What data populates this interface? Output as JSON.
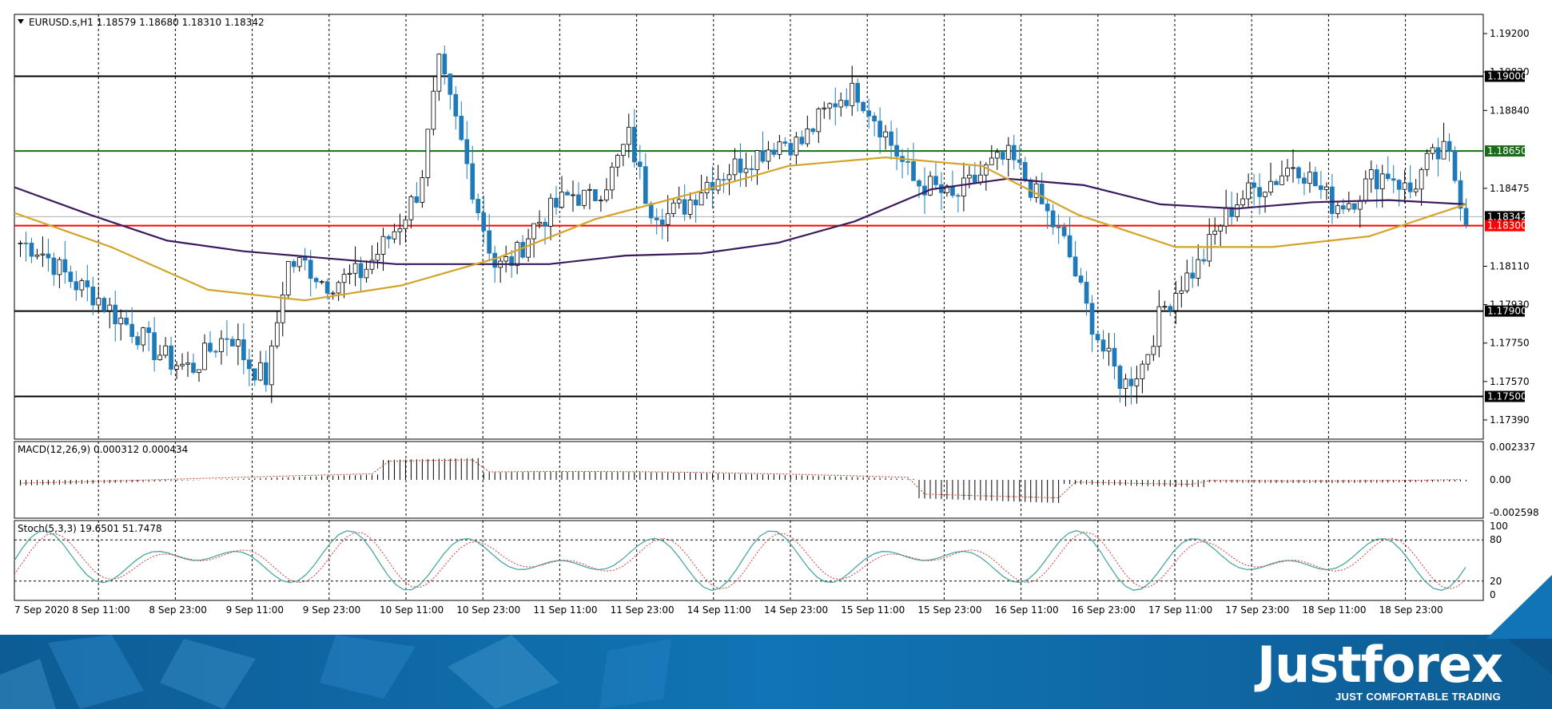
{
  "header": {
    "symbol_line": "EURUSD.s,H1  1.18579 1.18680 1.18310 1.18342",
    "menu_arrow_icon": "triangle-down-icon"
  },
  "macd": {
    "label": "MACD(12,26,9) 0.000312 0.000434",
    "axis_ticks": [
      "0.002337",
      "0.00",
      "-0.002598"
    ]
  },
  "stoch": {
    "label": "Stoch(5,3,3) 19.6501 51.7478",
    "axis_ticks": [
      "100",
      "80",
      "20",
      "0"
    ]
  },
  "price_axis": {
    "ticks": [
      "1.19200",
      "1.19020",
      "1.18840",
      "1.18475",
      "1.18110",
      "1.17930",
      "1.17750",
      "1.17570",
      "1.17390"
    ]
  },
  "levels": [
    {
      "label": "1.19000",
      "value": 1.19,
      "color": "#000000"
    },
    {
      "label": "1.18650",
      "value": 1.1865,
      "color": "#1a6b1a"
    },
    {
      "label": "1.18342",
      "value": 1.18342,
      "color": "#000000"
    },
    {
      "label": "1.18300",
      "value": 1.183,
      "color": "#ff0000"
    },
    {
      "label": "1.17900",
      "value": 1.179,
      "color": "#000000"
    },
    {
      "label": "1.17500",
      "value": 1.175,
      "color": "#000000"
    }
  ],
  "time_axis": {
    "labels": [
      "7 Sep 2020",
      "8 Sep 11:00",
      "8 Sep 23:00",
      "9 Sep 11:00",
      "9 Sep 23:00",
      "10 Sep 11:00",
      "10 Sep 23:00",
      "11 Sep 11:00",
      "11 Sep 23:00",
      "14 Sep 11:00",
      "14 Sep 23:00",
      "15 Sep 11:00",
      "15 Sep 23:00",
      "16 Sep 11:00",
      "16 Sep 23:00",
      "17 Sep 11:00",
      "17 Sep 23:00",
      "18 Sep 11:00",
      "18 Sep 23:00"
    ]
  },
  "colors": {
    "bull_candle": "#ffffff",
    "bear_candle": "#1e7ab8",
    "slow_ma": "#3b1a5e",
    "fast_ma": "#d4a32a",
    "stoch_main": "#4aa8a0",
    "stoch_signal": "#d43a3a",
    "footer_bg": "#0f6aa8"
  },
  "brand": {
    "name": "Justforex",
    "tagline": "JUST COMFORTABLE TRADING"
  },
  "chart_data": {
    "type": "candlestick",
    "symbol": "EURUSD.s",
    "timeframe": "H1",
    "ylim": [
      1.173,
      1.1929
    ],
    "close_path": [
      1.1822,
      1.1819,
      1.181,
      1.1802,
      1.1797,
      1.1788,
      1.1781,
      1.1772,
      1.1766,
      1.1763,
      1.1772,
      1.178,
      1.1765,
      1.1758,
      1.1812,
      1.1812,
      1.1803,
      1.1805,
      1.1808,
      1.182,
      1.1832,
      1.1848,
      1.1905,
      1.1875,
      1.184,
      1.181,
      1.1815,
      1.183,
      1.1838,
      1.1845,
      1.1842,
      1.1853,
      1.1872,
      1.184,
      1.1835,
      1.184,
      1.185,
      1.1855,
      1.186,
      1.1865,
      1.187,
      1.1868,
      1.188,
      1.189,
      1.1893,
      1.188,
      1.1865,
      1.185,
      1.1848,
      1.1842,
      1.185,
      1.1858,
      1.1862,
      1.185,
      1.1835,
      1.182,
      1.1792,
      1.177,
      1.1755,
      1.1765,
      1.179,
      1.1803,
      1.1812,
      1.183,
      1.1842,
      1.1848,
      1.1852,
      1.186,
      1.185,
      1.184,
      1.1842,
      1.1852,
      1.1855,
      1.1845,
      1.186,
      1.1865,
      1.1834
    ],
    "slow_ma": [
      1.1848,
      1.1835,
      1.1823,
      1.1818,
      1.1815,
      1.1812,
      1.1812,
      1.1812,
      1.1816,
      1.1817,
      1.1822,
      1.1832,
      1.1847,
      1.1852,
      1.1849,
      1.184,
      1.1838,
      1.1841,
      1.1842,
      1.184
    ],
    "fast_ma": [
      1.1836,
      1.182,
      1.18,
      1.1795,
      1.1802,
      1.1815,
      1.1833,
      1.1845,
      1.1858,
      1.1862,
      1.1858,
      1.1835,
      1.182,
      1.182,
      1.1825,
      1.184
    ]
  }
}
